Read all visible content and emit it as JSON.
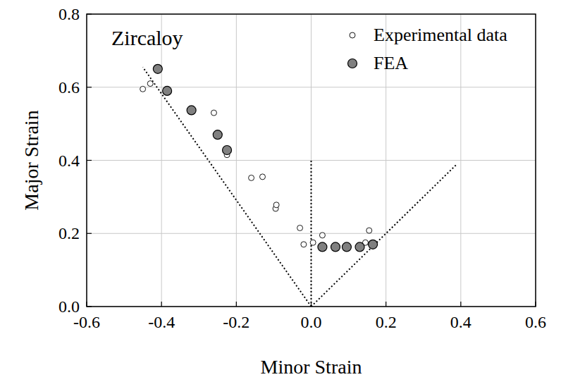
{
  "chart_data": {
    "type": "scatter",
    "annotation": "Zircaloy",
    "x_label": "Minor Strain",
    "y_label": "Major Strain",
    "xlim": [
      -0.6,
      0.6
    ],
    "ylim": [
      0,
      0.8
    ],
    "xticks": [
      -0.6,
      -0.4,
      -0.2,
      {
        "value": 0,
        "label": "0.0"
      },
      0.2,
      0.4,
      0.6
    ],
    "yticks": [
      {
        "value": 0,
        "label": "0.0"
      },
      0.2,
      0.4,
      0.6,
      0.8
    ],
    "grid": true,
    "legend": "top-right",
    "series": [
      {
        "name": "Experimental data",
        "color": "#ffffff",
        "marker": "open-circle",
        "x": [
          -0.45,
          -0.43,
          -0.26,
          -0.225,
          -0.16,
          -0.13,
          -0.095,
          -0.093,
          -0.03,
          -0.02,
          0.005,
          0.03,
          0.145,
          0.155
        ],
        "values": [
          0.595,
          0.61,
          0.53,
          0.415,
          0.352,
          0.355,
          0.268,
          0.278,
          0.215,
          0.17,
          0.175,
          0.195,
          0.175,
          0.208
        ]
      },
      {
        "name": "FEA",
        "color": "#808080",
        "marker": "filled-circle",
        "x": [
          -0.41,
          -0.385,
          -0.32,
          -0.25,
          -0.225,
          0.03,
          0.065,
          0.095,
          0.13,
          0.165
        ],
        "values": [
          0.65,
          0.59,
          0.537,
          0.47,
          0.428,
          0.163,
          0.163,
          0.163,
          0.163,
          0.17
        ]
      }
    ],
    "reference_lines": [
      {
        "x": [
          0,
          -0.45
        ],
        "y": [
          0,
          0.655
        ],
        "line_style": "dotted"
      },
      {
        "x": [
          0,
          0
        ],
        "y": [
          0,
          0.4
        ],
        "line_style": "dotted"
      },
      {
        "x": [
          0,
          0.39
        ],
        "y": [
          0,
          0.39
        ],
        "line_style": "dotted"
      }
    ]
  }
}
